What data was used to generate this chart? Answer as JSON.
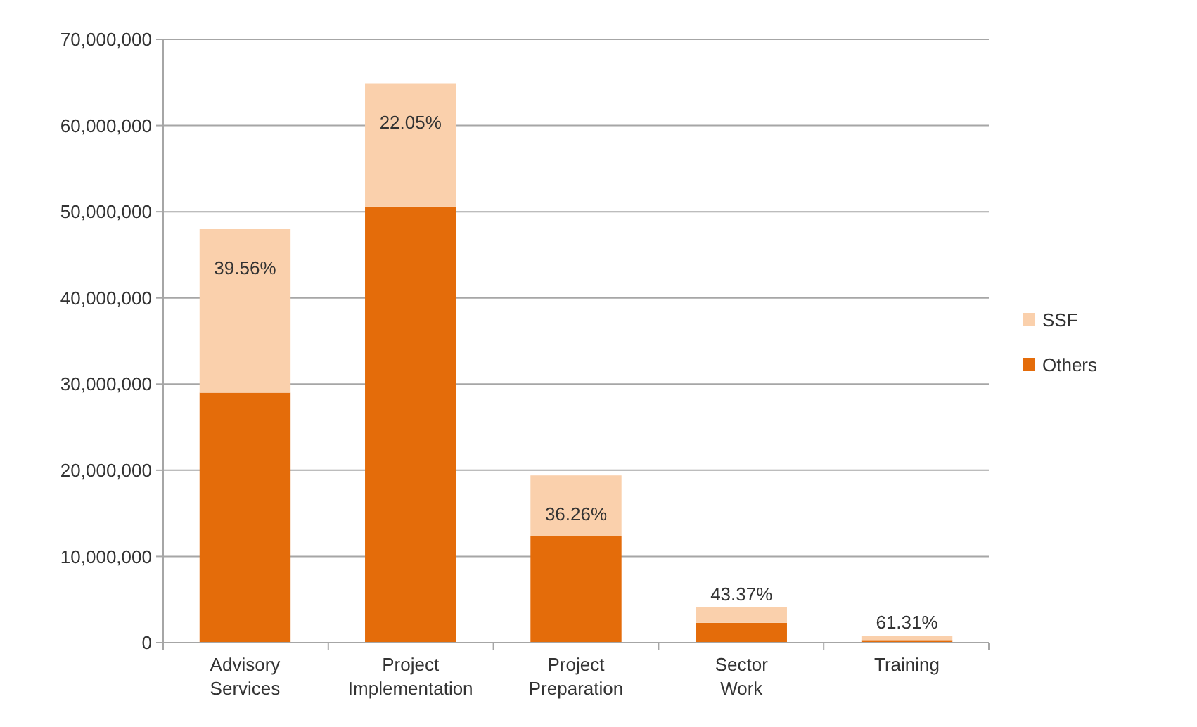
{
  "chart_data": {
    "type": "bar",
    "stacked": true,
    "categories": [
      "Advisory Services",
      "Project Implementation",
      "Project Preparation",
      "Sector Work",
      "Training"
    ],
    "series": [
      {
        "name": "Others",
        "color": "#e46c0a",
        "values": [
          29000000,
          50600000,
          12400000,
          2300000,
          300000
        ]
      },
      {
        "name": "SSF",
        "color": "#fad0ac",
        "values": [
          19000000,
          14300000,
          7000000,
          1800000,
          500000
        ]
      }
    ],
    "annotations": [
      "39.56%",
      "22.05%",
      "36.26%",
      "43.37%",
      "61.31%"
    ],
    "ylim": [
      0,
      70000000
    ],
    "yticks": [
      {
        "value": 0,
        "label": "0"
      },
      {
        "value": 10000000,
        "label": "10,000,000"
      },
      {
        "value": 20000000,
        "label": "20,000,000"
      },
      {
        "value": 30000000,
        "label": "30,000,000"
      },
      {
        "value": 40000000,
        "label": "40,000,000"
      },
      {
        "value": 50000000,
        "label": "50,000,000"
      },
      {
        "value": 60000000,
        "label": "60,000,000"
      },
      {
        "value": 70000000,
        "label": "70,000,000"
      }
    ],
    "grid": "y",
    "legend": "right"
  }
}
